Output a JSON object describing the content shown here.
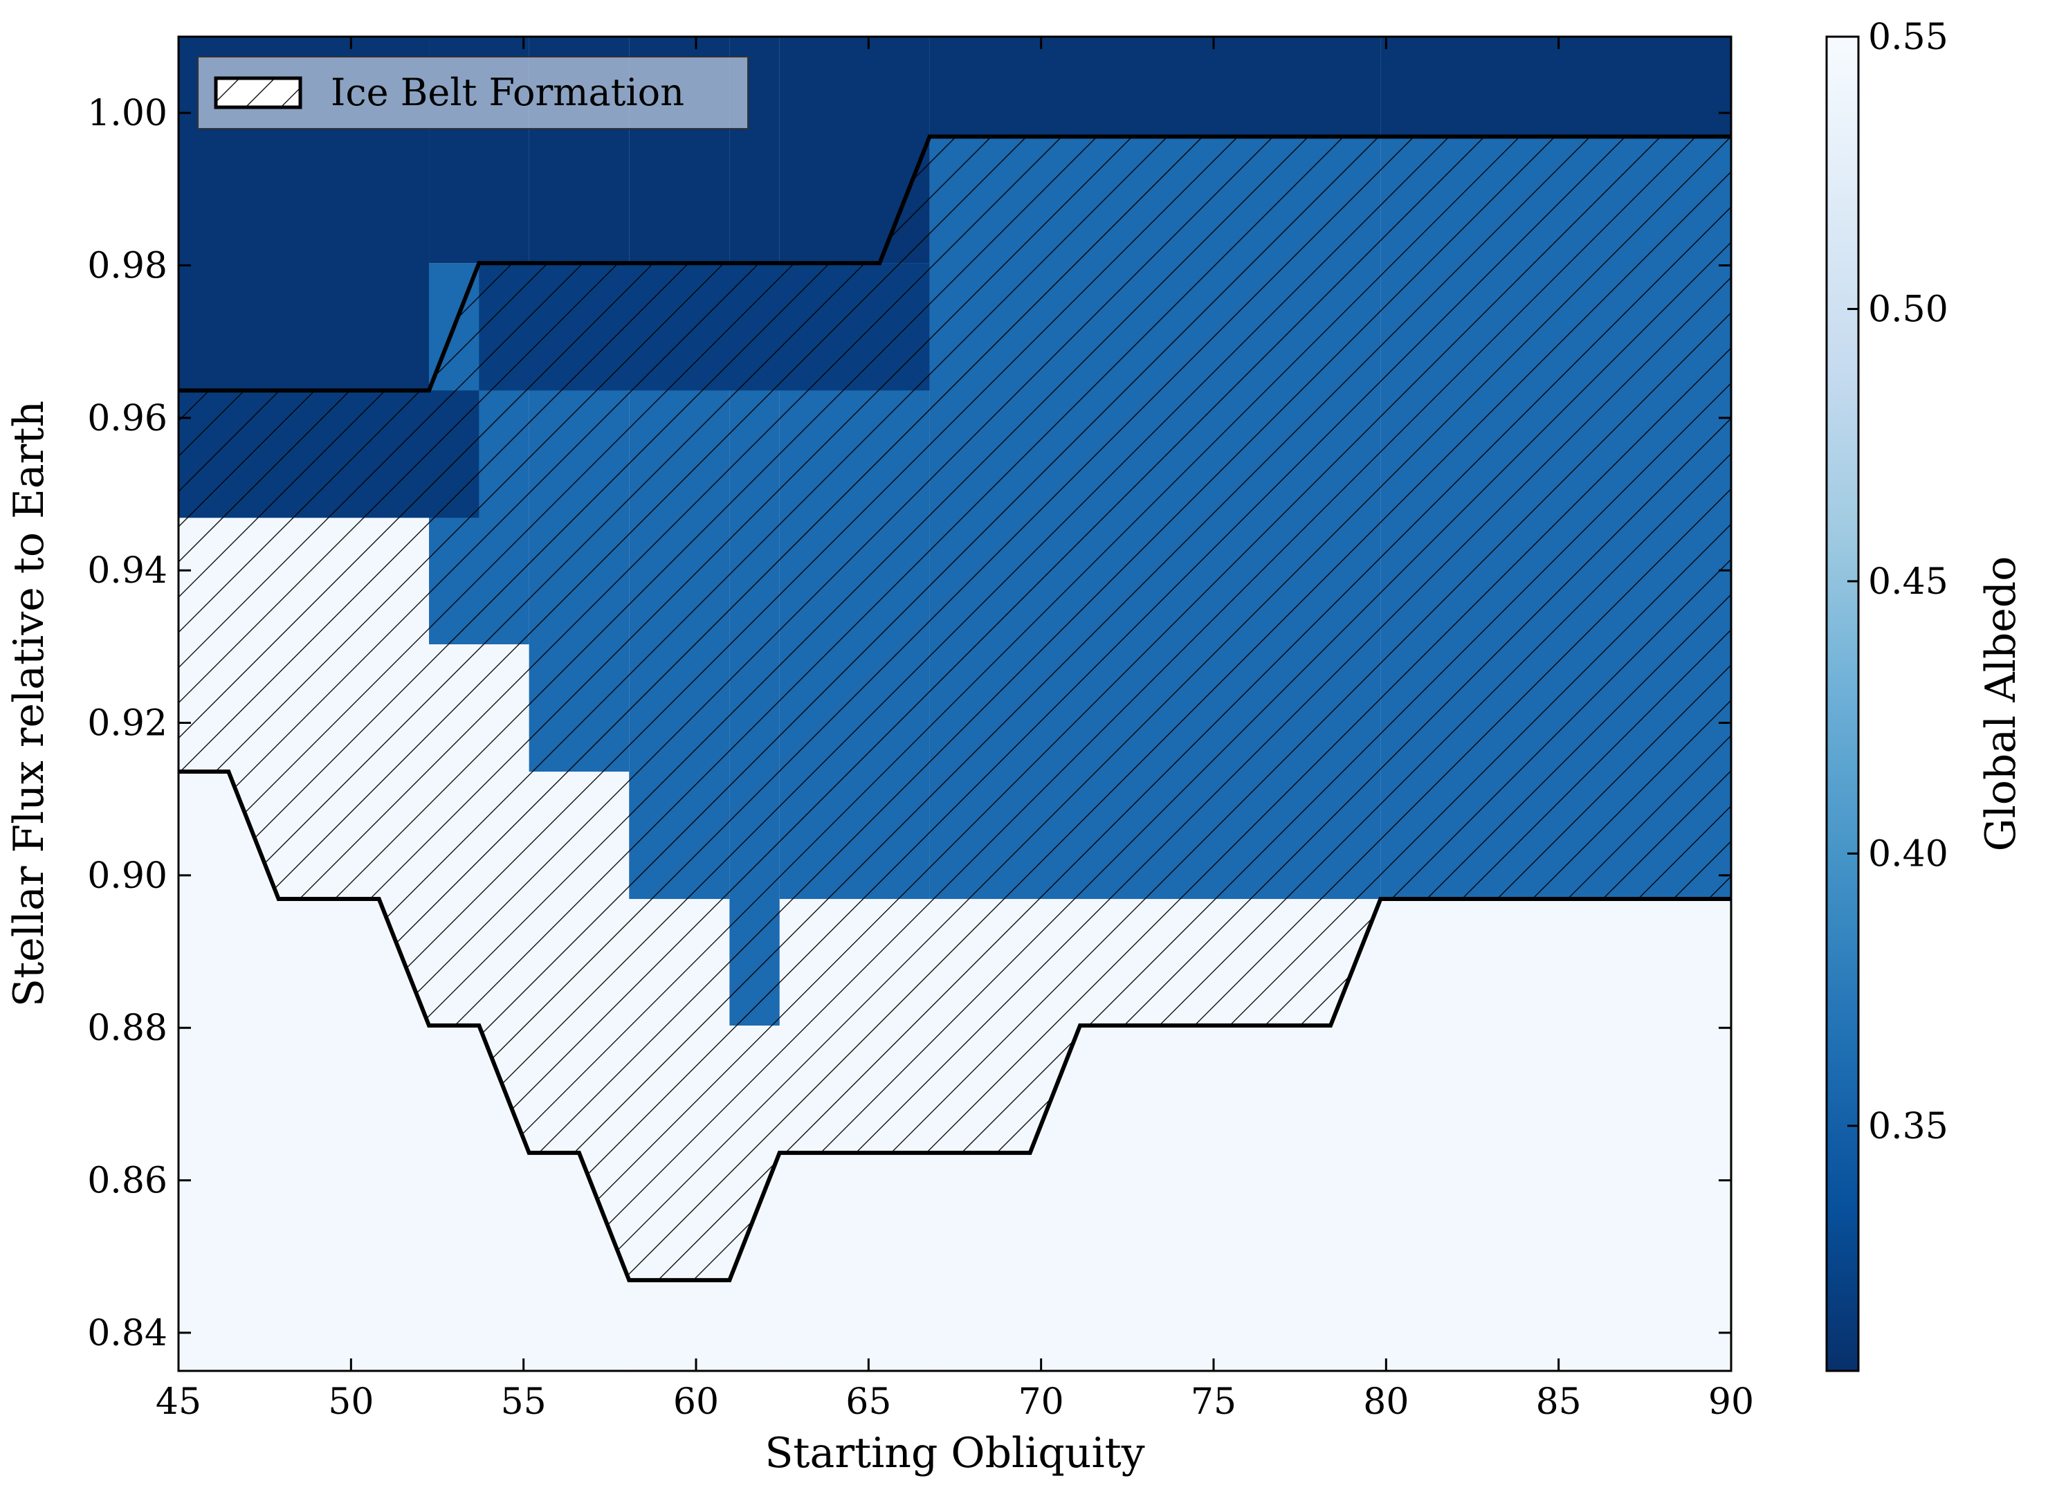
{
  "chart_data": {
    "type": "heatmap",
    "xlabel": "Starting Obliquity",
    "ylabel": "Stellar Flux relative to Earth",
    "colorbar_label": "Global Albedo",
    "xlim": [
      45,
      90
    ],
    "ylim": [
      0.835,
      1.01
    ],
    "xticks": [
      45,
      50,
      55,
      60,
      65,
      70,
      75,
      80,
      85,
      90
    ],
    "yticks": [
      0.84,
      0.86,
      0.88,
      0.9,
      0.92,
      0.94,
      0.96,
      0.98,
      1.0
    ],
    "ytick_labels": [
      "0.84",
      "0.86",
      "0.88",
      "0.90",
      "0.92",
      "0.94",
      "0.96",
      "0.98",
      "1.00"
    ],
    "colorbar_range": [
      0.305,
      0.55
    ],
    "colorbar_ticks": [
      0.35,
      0.4,
      0.45,
      0.5,
      0.55
    ],
    "colorbar_tick_labels": [
      "0.35",
      "0.40",
      "0.45",
      "0.50",
      "0.55"
    ],
    "colormap": "Blues_r",
    "colormap_stops": [
      "#08306b",
      "#08519c",
      "#2171b5",
      "#4292c6",
      "#6baed6",
      "#9ecae1",
      "#c6dbef",
      "#deebf7",
      "#f7fbff"
    ],
    "grid": false,
    "legend": {
      "position": "top-left",
      "entries": [
        "Ice Belt Formation"
      ]
    },
    "x_bins": {
      "start": 45,
      "step": 1.4516,
      "count": 31
    },
    "y_bins": {
      "values": [
        0.8386,
        0.8553,
        0.872,
        0.8886,
        0.9053,
        0.922,
        0.9386,
        0.9553,
        0.972,
        0.9886,
        1.0053
      ]
    },
    "regions": [
      {
        "state": "ice-free",
        "albedo": 0.31,
        "description_rows": "flux 0.9886-1.0136, all obliquities"
      },
      {
        "state": "ice-belt",
        "albedo": 0.36
      },
      {
        "state": "snowball",
        "albedo": 0.545
      }
    ],
    "column_profile": [
      {
        "x0": 45,
        "x1": 52.26,
        "snowball_top": 0.9136,
        "belt_bottom": 0.9469,
        "dark_top_of_belt": 0.9636
      },
      {
        "x0": 52.26,
        "x1": 55.16,
        "snowball_top": 0.9136,
        "belt_bottom": 0.9303,
        "dark_top_of_belt": 0.9803
      },
      {
        "x0": 55.16,
        "x1": 58.06,
        "snowball_top": 0.8636,
        "belt_bottom": 0.9136,
        "dark_top_of_belt": 0.9803
      },
      {
        "x0": 58.06,
        "x1": 60.97,
        "snowball_top": 0.8469,
        "belt_bottom": 0.8969,
        "dark_top_of_belt": 0.9803
      },
      {
        "x0": 60.97,
        "x1": 62.42,
        "snowball_top": 0.8469,
        "belt_bottom": 0.8803,
        "dark_top_of_belt": 0.9803
      },
      {
        "x0": 62.42,
        "x1": 66.77,
        "snowball_top": 0.8636,
        "belt_bottom": 0.8969,
        "dark_top_of_belt": 0.9803
      },
      {
        "x0": 66.77,
        "x1": 79.84,
        "snowball_top": 0.8636,
        "belt_bottom": 0.8969,
        "dark_top_of_belt": 0.9969
      },
      {
        "x0": 79.84,
        "x1": 90,
        "snowball_top": 0.8969,
        "belt_bottom": 0.8969,
        "dark_top_of_belt": 0.9969
      }
    ],
    "ice_belt_boundary_upper": [
      [
        45,
        0.9636
      ],
      [
        52.26,
        0.9636
      ],
      [
        53.71,
        0.9803
      ],
      [
        65.32,
        0.9803
      ],
      [
        66.77,
        0.9969
      ],
      [
        90,
        0.9969
      ]
    ],
    "ice_belt_boundary_lower": [
      [
        45,
        0.9136
      ],
      [
        46.45,
        0.9136
      ],
      [
        47.9,
        0.8969
      ],
      [
        50.81,
        0.8969
      ],
      [
        52.26,
        0.8803
      ],
      [
        53.71,
        0.8803
      ],
      [
        55.16,
        0.8636
      ],
      [
        56.61,
        0.8636
      ],
      [
        58.06,
        0.8469
      ],
      [
        60.97,
        0.8469
      ],
      [
        62.42,
        0.8636
      ],
      [
        69.68,
        0.8636
      ],
      [
        71.13,
        0.8803
      ],
      [
        78.39,
        0.8803
      ],
      [
        79.84,
        0.8969
      ],
      [
        90,
        0.8969
      ]
    ]
  }
}
